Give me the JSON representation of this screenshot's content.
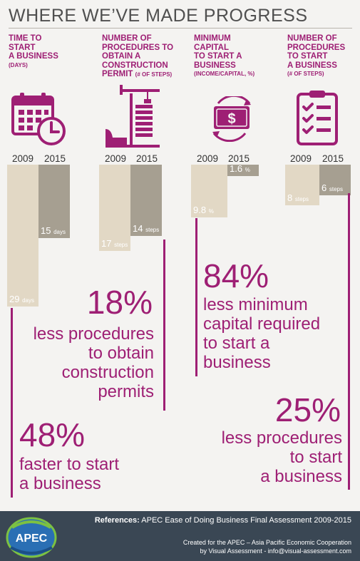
{
  "title": "WHERE WE’VE MADE PROGRESS",
  "columns": [
    {
      "heading_lines": [
        "TIME TO",
        "START",
        "A BUSINESS"
      ],
      "unit": "(DAYS)"
    },
    {
      "heading_lines": [
        "NUMBER OF",
        "PROCEDURES TO",
        "OBTAIN A",
        "CONSTRUCTION",
        "PERMIT"
      ],
      "unit": "(# OF STEPS)"
    },
    {
      "heading_lines": [
        "MINIMUM",
        "CAPITAL",
        "TO START A",
        "BUSINESS"
      ],
      "unit": "(INCOME/CAPITAL, %)"
    },
    {
      "heading_lines": [
        "NUMBER OF",
        "PROCEDURES",
        "TO START",
        "A BUSINESS"
      ],
      "unit": "(# OF STEPS)"
    }
  ],
  "icons": [
    "calendar-clock-icon",
    "crane-building-icon",
    "money-cycle-icon",
    "checklist-icon"
  ],
  "colors": {
    "accent": "#9e1f74",
    "bar_2009": "#e2d8c5",
    "bar_2015": "#a69f91",
    "title": "#4f4f4f",
    "footer": "#3a4754"
  },
  "chart_data": [
    {
      "type": "bar",
      "categories": [
        "2009",
        "2015"
      ],
      "values": [
        29,
        15
      ],
      "value_labels": [
        "29",
        "15"
      ],
      "units": [
        "days",
        "days"
      ]
    },
    {
      "type": "bar",
      "categories": [
        "2009",
        "2015"
      ],
      "values": [
        17,
        14
      ],
      "value_labels": [
        "17",
        "14"
      ],
      "units": [
        "steps",
        "steps"
      ]
    },
    {
      "type": "bar",
      "categories": [
        "2009",
        "2015"
      ],
      "values": [
        9.8,
        1.6
      ],
      "value_labels": [
        "9.8",
        "1.6"
      ],
      "units": [
        "%",
        "%"
      ]
    },
    {
      "type": "bar",
      "categories": [
        "2009",
        "2015"
      ],
      "values": [
        8,
        6
      ],
      "value_labels": [
        "8",
        "6"
      ],
      "units": [
        "steps",
        "steps"
      ]
    }
  ],
  "callouts": {
    "construction": {
      "pct": "18%",
      "lines": [
        "less procedures",
        "to obtain",
        "construction",
        "permits"
      ]
    },
    "start_time": {
      "pct": "48%",
      "lines": [
        "faster to start",
        "a business"
      ]
    },
    "capital": {
      "pct": "84%",
      "lines": [
        "less minimum",
        "capital required",
        "to start a",
        "business"
      ]
    },
    "procedures": {
      "pct": "25%",
      "lines": [
        "less procedures",
        "to start",
        "a business"
      ]
    }
  },
  "footer": {
    "ref_label": "References:",
    "ref_text": " APEC Ease of Doing Business Final Assessment 2009-2015",
    "credit_line1": "Created for the APEC – Asia Pacific Economic Cooperation",
    "credit_line2": "by Visual Assessment - info@visual-assessment.com",
    "logo_text": "APEC"
  }
}
